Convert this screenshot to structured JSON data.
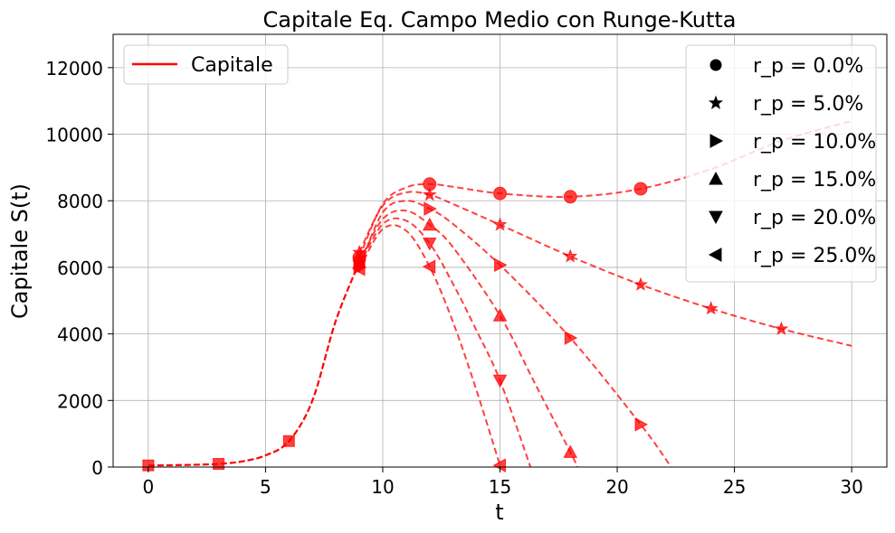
{
  "chart_data": {
    "type": "line",
    "title": "Capitale Eq. Campo Medio con Runge-Kutta",
    "xlabel": "t",
    "ylabel": "Capitale S(t)",
    "xlim": [
      -1.5,
      31.5
    ],
    "ylim": [
      0,
      13000
    ],
    "xticks": [
      0,
      5,
      10,
      15,
      20,
      25,
      30
    ],
    "yticks": [
      0,
      2000,
      4000,
      6000,
      8000,
      10000,
      12000
    ],
    "grid": true,
    "color": "#ff0000",
    "legend_left": {
      "placement": "top-left",
      "entries": [
        {
          "label": "Capitale",
          "style": "solid-line"
        }
      ]
    },
    "legend_right": {
      "placement": "top-right",
      "entries": [
        {
          "marker": "circle",
          "label": "r_p = 0.0%"
        },
        {
          "marker": "star",
          "label": "r_p = 5.0%"
        },
        {
          "marker": "triangle-right",
          "label": "r_p = 10.0%"
        },
        {
          "marker": "triangle-up",
          "label": "r_p = 15.0%"
        },
        {
          "marker": "triangle-down",
          "label": "r_p = 20.0%"
        },
        {
          "marker": "triangle-left",
          "label": "r_p = 25.0%"
        }
      ]
    },
    "base_series": {
      "marker": "square",
      "x": [
        0,
        1,
        2,
        3,
        4,
        5,
        6,
        7,
        8,
        9
      ],
      "y": [
        50,
        55,
        70,
        95,
        170,
        350,
        780,
        2000,
        4400,
        6150
      ],
      "markers": [
        [
          0,
          50
        ],
        [
          3,
          95
        ],
        [
          6,
          780
        ],
        [
          9,
          6150
        ]
      ]
    },
    "series": [
      {
        "name": "r_p = 0.0%",
        "marker": "circle",
        "x": [
          9,
          10,
          11,
          12,
          13,
          15,
          18,
          21,
          24,
          27,
          30
        ],
        "y": [
          6300,
          7900,
          8400,
          8500,
          8420,
          8220,
          8120,
          8360,
          8950,
          9800,
          10400
        ],
        "markers": [
          [
            9,
            6300
          ],
          [
            12,
            8500
          ],
          [
            15,
            8220
          ],
          [
            18,
            8120
          ],
          [
            21,
            8360
          ]
        ]
      },
      {
        "name": "r_p = 5.0%",
        "marker": "star",
        "x": [
          9,
          10,
          11,
          12,
          13,
          15,
          18,
          21,
          24,
          27,
          30
        ],
        "y": [
          6450,
          7850,
          8250,
          8180,
          7900,
          7280,
          6330,
          5480,
          4760,
          4150,
          3640
        ],
        "markers": [
          [
            9,
            6450
          ],
          [
            12,
            8180
          ],
          [
            15,
            7280
          ],
          [
            18,
            6330
          ],
          [
            21,
            5480
          ],
          [
            24,
            4760
          ],
          [
            27,
            4150
          ]
        ]
      },
      {
        "name": "r_p = 10.0%",
        "marker": "triangle-right",
        "x": [
          9,
          10,
          11,
          12,
          13,
          15,
          18,
          21,
          22.3
        ],
        "y": [
          6000,
          7650,
          8000,
          7760,
          7300,
          6070,
          3880,
          1280,
          0
        ],
        "markers": [
          [
            9,
            6000
          ],
          [
            12,
            7760
          ],
          [
            15,
            6070
          ],
          [
            18,
            3880
          ],
          [
            21,
            1280
          ]
        ]
      },
      {
        "name": "r_p = 15.0%",
        "marker": "triangle-up",
        "x": [
          9,
          10,
          11,
          12,
          13,
          15,
          16.5,
          18,
          18.3
        ],
        "y": [
          6150,
          7450,
          7700,
          7280,
          6600,
          4550,
          2500,
          450,
          0
        ],
        "markers": [
          [
            9,
            6150
          ],
          [
            12,
            7280
          ],
          [
            15,
            4550
          ],
          [
            18,
            450
          ]
        ]
      },
      {
        "name": "r_p = 20.0%",
        "marker": "triangle-down",
        "x": [
          9,
          10,
          11,
          12,
          13,
          14,
          15,
          16.3
        ],
        "y": [
          6050,
          7300,
          7400,
          6720,
          5500,
          4100,
          2600,
          0
        ],
        "markers": [
          [
            9,
            6050
          ],
          [
            12,
            6720
          ],
          [
            15,
            2600
          ]
        ]
      },
      {
        "name": "r_p = 25.0%",
        "marker": "triangle-left",
        "x": [
          9,
          10,
          11,
          12,
          13,
          14,
          15
        ],
        "y": [
          5950,
          7150,
          7100,
          6020,
          4350,
          2300,
          50
        ],
        "markers": [
          [
            9,
            5950
          ],
          [
            12,
            6020
          ],
          [
            15,
            50
          ]
        ]
      }
    ]
  }
}
